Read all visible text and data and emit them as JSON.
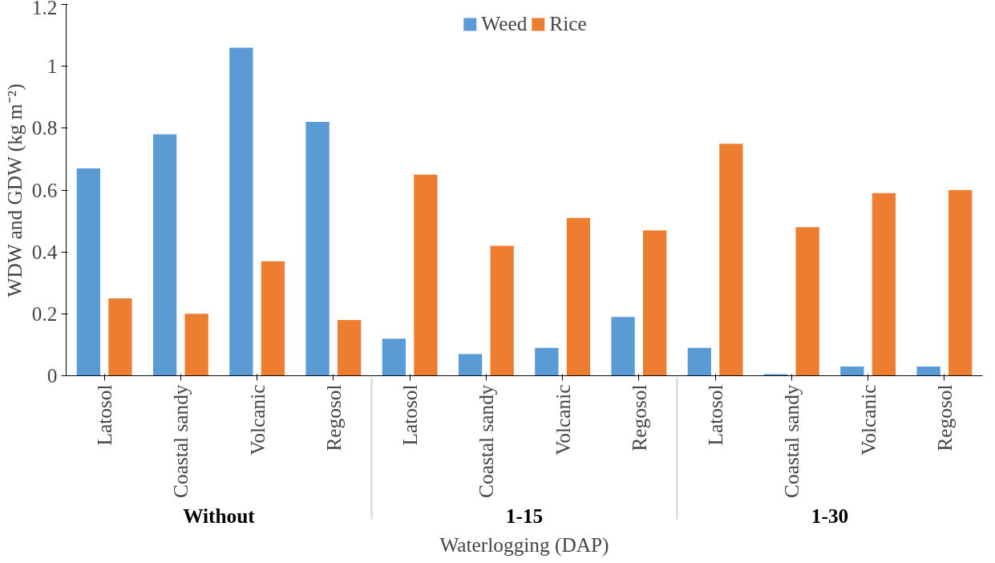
{
  "chart_data": {
    "type": "bar",
    "xlabel": "Waterlogging (DAP)",
    "ylabel": "WDW and GDW (kg m⁻²)",
    "categories": [
      "Latosol",
      "Coastal sandy",
      "Volcanic",
      "Regosol",
      "Latosol",
      "Coastal sandy",
      "Volcanic",
      "Regosol",
      "Latosol",
      "Coastal sandy",
      "Volcanic",
      "Regosol"
    ],
    "annotations": [
      "Without",
      "1-15",
      "1-30"
    ],
    "series": [
      {
        "name": "Weed",
        "color": "#5b9bd5",
        "values": [
          0.67,
          0.78,
          1.06,
          0.82,
          0.12,
          0.07,
          0.09,
          0.19,
          0.09,
          0.005,
          0.03,
          0.03
        ]
      },
      {
        "name": "Rice",
        "color": "#ed7d31",
        "values": [
          0.25,
          0.2,
          0.37,
          0.18,
          0.65,
          0.42,
          0.51,
          0.47,
          0.75,
          0.48,
          0.59,
          0.6
        ]
      }
    ],
    "ylim": [
      0,
      1.2
    ],
    "yticks": [
      0,
      0.2,
      0.4,
      0.6,
      0.8,
      1,
      1.2
    ],
    "grid": false,
    "legend": "top"
  }
}
